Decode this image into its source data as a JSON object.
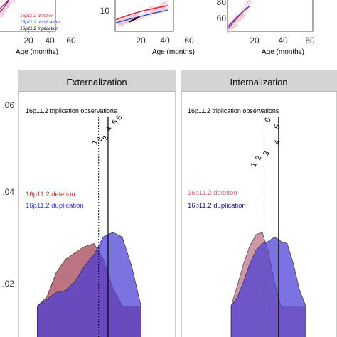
{
  "growth_panels": {
    "x_axis_title": "Age (months)",
    "panel1": {
      "x_ticks": [
        "20",
        "40",
        "60"
      ]
    },
    "panel2": {
      "x_ticks": [
        "20",
        "40",
        "60"
      ],
      "y_ticks": [
        "10"
      ]
    },
    "panel3": {
      "x_ticks": [
        "20",
        "40",
        "60"
      ],
      "y_ticks": [
        "60",
        "80"
      ]
    },
    "legend": [
      {
        "label": "16p11.2 deletion",
        "color": "#d7263d"
      },
      {
        "label": "16p11.2 duplication",
        "color": "#2b3fd6"
      },
      {
        "label": "16p11.2 triplication",
        "color": "#000000"
      }
    ]
  },
  "density_panels": {
    "y_ticks": [
      ".06",
      ".04",
      ".02"
    ],
    "observation_title": "16p11.2 triplication observations",
    "facets": [
      {
        "strip": "Externalization",
        "legend": [
          {
            "label": "16p11.2 deletion",
            "color": "#c0392b"
          },
          {
            "label": "16p11.2 duplication",
            "color": "#3b3fd1"
          }
        ]
      },
      {
        "strip": "Internalization",
        "legend": [
          {
            "label": "16p11.2 deletion",
            "color": "#c96b78"
          },
          {
            "label": "16p11.2 duplication",
            "color": "#1c126e"
          }
        ]
      }
    ]
  },
  "colors": {
    "deletion_fill": "#b05a6c",
    "duplication_fill": "#4a3cd6",
    "strip_bg": "#d4d4d4",
    "pink_points": "#f2b6c6"
  },
  "chart_data": [
    {
      "type": "line",
      "panel": "growth-left",
      "xlabel": "Age (months)",
      "x_ticks": [
        20,
        40,
        60
      ],
      "series": [
        {
          "name": "16p11.2 deletion"
        },
        {
          "name": "16p11.2 duplication"
        },
        {
          "name": "16p11.2 triplication"
        }
      ]
    },
    {
      "type": "scatter",
      "panel": "growth-middle",
      "xlabel": "Age (months)",
      "x_ticks": [
        20,
        40,
        60
      ],
      "y_ticks": [
        10
      ]
    },
    {
      "type": "scatter",
      "panel": "growth-right",
      "xlabel": "Age (months)",
      "x_ticks": [
        20,
        40,
        60
      ],
      "y_ticks": [
        60,
        80
      ]
    },
    {
      "type": "area",
      "facet": "Externalization",
      "y_ticks": [
        0.02,
        0.04,
        0.06
      ],
      "xlim": [
        0,
        100
      ],
      "ylim": [
        0.015,
        0.062
      ],
      "x": [
        12,
        18,
        24,
        30,
        36,
        42,
        48,
        54,
        60,
        66,
        72,
        78
      ],
      "series": [
        {
          "name": "16p11.2 deletion",
          "values": [
            0.015,
            0.017,
            0.0225,
            0.0255,
            0.027,
            0.0283,
            0.029,
            0.0255,
            0.019,
            0.015,
            0.015,
            0.015
          ]
        },
        {
          "name": "16p11.2 duplication",
          "values": [
            0.015,
            0.0165,
            0.018,
            0.0185,
            0.0205,
            0.024,
            0.0265,
            0.0305,
            0.0315,
            0.0305,
            0.024,
            0.015
          ]
        }
      ],
      "vlines": [
        {
          "style": "dashed",
          "x": 51
        },
        {
          "style": "solid",
          "x": 57
        }
      ],
      "observation_markers": [
        {
          "label": "1",
          "x": 50,
          "y": 0.0515
        },
        {
          "label": "2",
          "x": 53,
          "y": 0.0522
        },
        {
          "label": "3",
          "x": 57,
          "y": 0.0525
        },
        {
          "label": "4",
          "x": 59,
          "y": 0.0545
        },
        {
          "label": "5",
          "x": 63,
          "y": 0.056
        },
        {
          "label": "6",
          "x": 65.5,
          "y": 0.057
        }
      ]
    },
    {
      "type": "area",
      "facet": "Internalization",
      "y_ticks": [
        0.02,
        0.04,
        0.06
      ],
      "xlim": [
        0,
        100
      ],
      "ylim": [
        0.015,
        0.062
      ],
      "x": [
        32,
        36,
        40,
        44,
        48,
        52,
        56,
        60,
        64,
        68,
        72,
        76,
        80
      ],
      "series": [
        {
          "name": "16p11.2 deletion",
          "values": [
            0.015,
            0.0195,
            0.0245,
            0.0285,
            0.031,
            0.0315,
            0.027,
            0.02,
            0.015,
            0.015,
            0.015,
            0.015,
            0.015
          ]
        },
        {
          "name": "16p11.2 duplication",
          "values": [
            0.015,
            0.017,
            0.0205,
            0.0245,
            0.0275,
            0.029,
            0.0295,
            0.0305,
            0.0295,
            0.029,
            0.0245,
            0.0185,
            0.015
          ]
        }
      ],
      "vlines": [
        {
          "style": "dashed",
          "x": 55
        },
        {
          "style": "solid",
          "x": 62.5
        }
      ],
      "observation_markers": [
        {
          "label": "1",
          "x": 48,
          "y": 0.0465
        },
        {
          "label": "2",
          "x": 51,
          "y": 0.048
        },
        {
          "label": "3",
          "x": 56,
          "y": 0.049
        },
        {
          "label": "4",
          "x": 63,
          "y": 0.0515
        },
        {
          "label": "5",
          "x": 63,
          "y": 0.055
        },
        {
          "label": "6",
          "x": 57,
          "y": 0.0565
        }
      ]
    }
  ]
}
